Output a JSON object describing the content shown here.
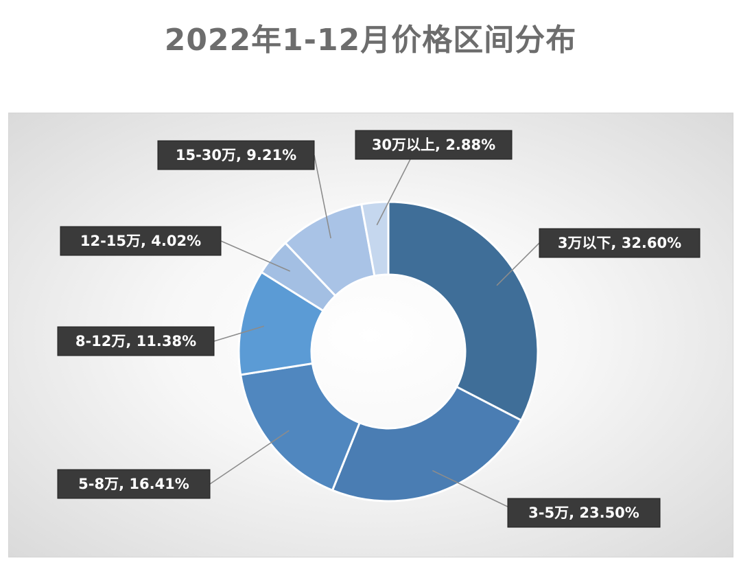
{
  "title": "2022年1-12月价格区间分布",
  "colors": {
    "slices": [
      "#3f6e98",
      "#4a7db3",
      "#5087bf",
      "#5b9bd5",
      "#a3bfe3",
      "#a9c3e6",
      "#c5d7ee"
    ],
    "label_bg": "#3a3a3a",
    "title": "#6d6d6d"
  },
  "chart_data": {
    "type": "pie",
    "donut": true,
    "title": "2022年1-12月价格区间分布",
    "start_angle_deg": 0,
    "direction": "clockwise",
    "slices": [
      {
        "label": "3万以下",
        "value": 32.6,
        "text": "3万以下, 32.60%"
      },
      {
        "label": "3-5万",
        "value": 23.5,
        "text": "3-5万, 23.50%"
      },
      {
        "label": "5-8万",
        "value": 16.41,
        "text": "5-8万, 16.41%"
      },
      {
        "label": "8-12万",
        "value": 11.38,
        "text": "8-12万, 11.38%"
      },
      {
        "label": "12-15万",
        "value": 4.02,
        "text": "12-15万, 4.02%"
      },
      {
        "label": "15-30万",
        "value": 9.21,
        "text": "15-30万, 9.21%"
      },
      {
        "label": "30万以上",
        "value": 2.88,
        "text": "30万以上, 2.88%"
      }
    ],
    "legend": "none",
    "data_labels": "outside-with-leader-lines"
  }
}
